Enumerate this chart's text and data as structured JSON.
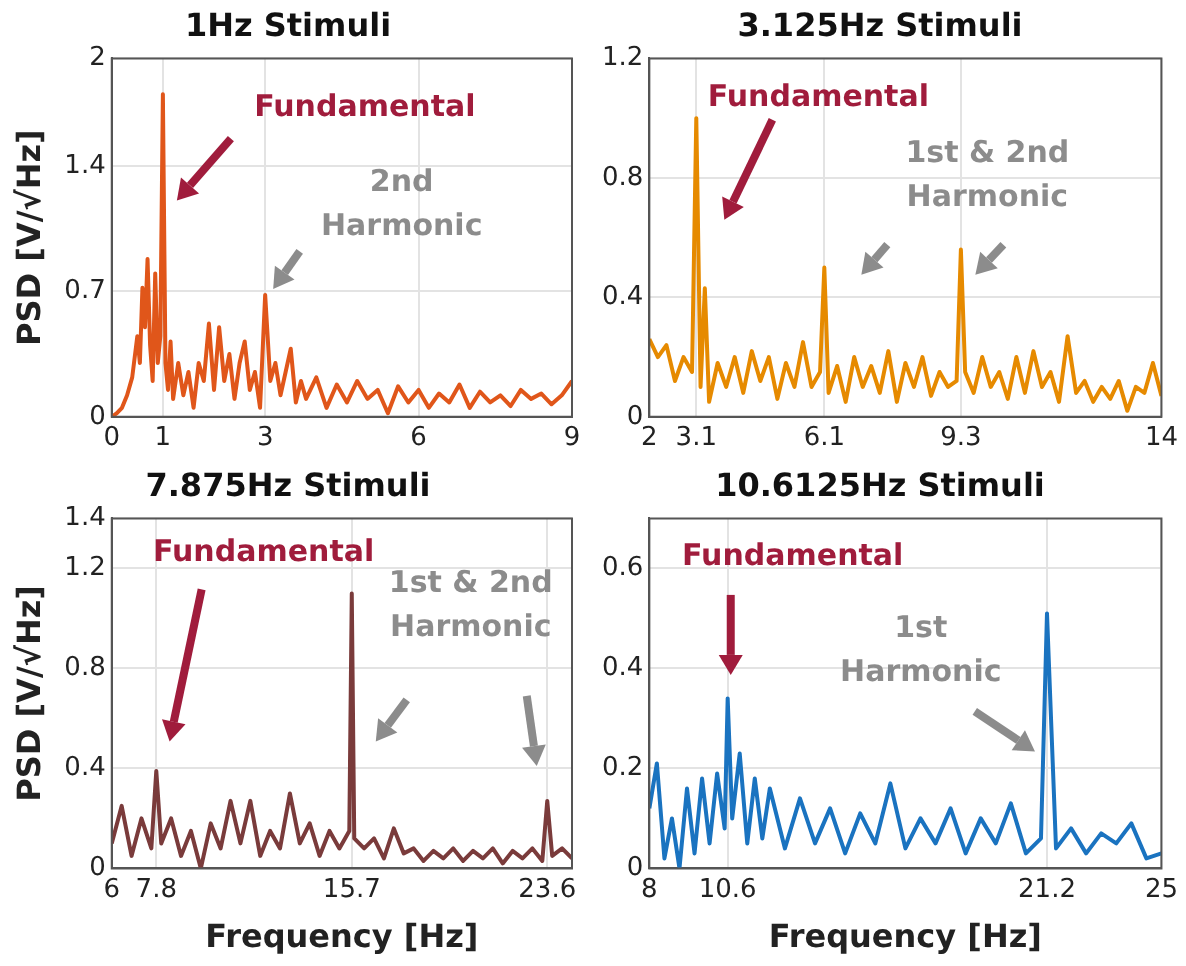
{
  "chart_data": [
    {
      "type": "line",
      "title": "1Hz Stimuli",
      "ylabel": "PSD [V/√Hz]",
      "xlim": [
        0,
        9
      ],
      "ylim": [
        0,
        2
      ],
      "xticks": [
        0,
        1,
        3,
        6,
        9
      ],
      "yticks": [
        0,
        0.7,
        1.4,
        2
      ],
      "grid": true,
      "x": [
        0,
        0.1,
        0.2,
        0.3,
        0.4,
        0.5,
        0.55,
        0.6,
        0.65,
        0.7,
        0.75,
        0.8,
        0.85,
        0.9,
        0.95,
        1.0,
        1.05,
        1.1,
        1.15,
        1.2,
        1.3,
        1.4,
        1.5,
        1.6,
        1.7,
        1.8,
        1.9,
        2.0,
        2.1,
        2.2,
        2.3,
        2.4,
        2.5,
        2.6,
        2.7,
        2.8,
        2.9,
        3.0,
        3.1,
        3.2,
        3.3,
        3.4,
        3.5,
        3.6,
        3.7,
        3.8,
        4.0,
        4.2,
        4.4,
        4.6,
        4.8,
        5.0,
        5.2,
        5.4,
        5.6,
        5.8,
        6.0,
        6.2,
        6.4,
        6.6,
        6.8,
        7.0,
        7.2,
        7.4,
        7.6,
        7.8,
        8.0,
        8.2,
        8.4,
        8.6,
        8.8,
        9.0
      ],
      "series": [
        {
          "color": "#e0561a",
          "values": [
            0,
            0.02,
            0.05,
            0.12,
            0.22,
            0.45,
            0.3,
            0.72,
            0.5,
            0.88,
            0.4,
            0.2,
            0.8,
            0.3,
            0.45,
            1.8,
            0.3,
            0.15,
            0.42,
            0.1,
            0.3,
            0.12,
            0.25,
            0.05,
            0.3,
            0.2,
            0.52,
            0.15,
            0.5,
            0.2,
            0.35,
            0.1,
            0.3,
            0.42,
            0.15,
            0.25,
            0.05,
            0.68,
            0.2,
            0.3,
            0.12,
            0.25,
            0.38,
            0.08,
            0.2,
            0.1,
            0.22,
            0.05,
            0.18,
            0.08,
            0.2,
            0.1,
            0.15,
            0.02,
            0.17,
            0.08,
            0.15,
            0.05,
            0.13,
            0.08,
            0.18,
            0.05,
            0.14,
            0.08,
            0.12,
            0.06,
            0.15,
            0.1,
            0.13,
            0.07,
            0.12,
            0.2
          ]
        }
      ],
      "annotations": [
        "Fundamental",
        {
          "text": "2nd Harmonic",
          "x": 3,
          "y": 0.68
        }
      ]
    },
    {
      "type": "line",
      "title": "3.125Hz Stimuli",
      "xlim": [
        2,
        14
      ],
      "ylim": [
        0,
        1.2
      ],
      "xticks": [
        2,
        3.1,
        6.1,
        9.3,
        14
      ],
      "yticks": [
        0,
        0.4,
        0.8,
        1.2
      ],
      "grid": true,
      "x": [
        2.0,
        2.2,
        2.4,
        2.6,
        2.8,
        3.0,
        3.1,
        3.2,
        3.3,
        3.4,
        3.6,
        3.8,
        4.0,
        4.2,
        4.4,
        4.6,
        4.8,
        5.0,
        5.2,
        5.4,
        5.6,
        5.8,
        6.0,
        6.1,
        6.2,
        6.4,
        6.6,
        6.8,
        7.0,
        7.2,
        7.4,
        7.6,
        7.8,
        8.0,
        8.2,
        8.4,
        8.6,
        8.8,
        9.0,
        9.2,
        9.3,
        9.4,
        9.6,
        9.8,
        10.0,
        10.2,
        10.4,
        10.6,
        10.8,
        11.0,
        11.2,
        11.4,
        11.6,
        11.8,
        12.0,
        12.2,
        12.4,
        12.6,
        12.8,
        13.0,
        13.2,
        13.4,
        13.6,
        13.8,
        14.0
      ],
      "series": [
        {
          "color": "#e68a00",
          "values": [
            0.26,
            0.2,
            0.24,
            0.12,
            0.2,
            0.15,
            1.0,
            0.1,
            0.43,
            0.05,
            0.18,
            0.1,
            0.2,
            0.08,
            0.22,
            0.12,
            0.2,
            0.06,
            0.18,
            0.1,
            0.25,
            0.1,
            0.15,
            0.5,
            0.08,
            0.17,
            0.05,
            0.2,
            0.1,
            0.17,
            0.08,
            0.22,
            0.05,
            0.18,
            0.1,
            0.2,
            0.07,
            0.15,
            0.1,
            0.12,
            0.56,
            0.15,
            0.08,
            0.2,
            0.1,
            0.15,
            0.06,
            0.2,
            0.08,
            0.22,
            0.1,
            0.15,
            0.05,
            0.27,
            0.08,
            0.12,
            0.05,
            0.1,
            0.06,
            0.12,
            0.02,
            0.1,
            0.08,
            0.18,
            0.07
          ]
        }
      ],
      "annotations": [
        "Fundamental",
        "1st & 2nd Harmonic"
      ]
    },
    {
      "type": "line",
      "title": "7.875Hz Stimuli",
      "xlabel": "Frequency [Hz]",
      "ylabel": "PSD [V/√Hz]",
      "xlim": [
        6,
        24.6
      ],
      "ylim": [
        0,
        1.4
      ],
      "xticks": [
        6,
        7.8,
        15.7,
        23.6
      ],
      "yticks": [
        0,
        0.4,
        0.8,
        1.2,
        1.4
      ],
      "grid": true,
      "x": [
        6.0,
        6.4,
        6.8,
        7.2,
        7.6,
        7.8,
        8.0,
        8.4,
        8.8,
        9.2,
        9.6,
        10.0,
        10.4,
        10.8,
        11.2,
        11.6,
        12.0,
        12.4,
        12.8,
        13.2,
        13.6,
        14.0,
        14.4,
        14.8,
        15.2,
        15.6,
        15.7,
        15.8,
        16.2,
        16.6,
        17.0,
        17.4,
        17.8,
        18.2,
        18.6,
        19.0,
        19.4,
        19.8,
        20.2,
        20.6,
        21.0,
        21.4,
        21.8,
        22.2,
        22.6,
        23.0,
        23.4,
        23.6,
        23.8,
        24.2,
        24.6
      ],
      "series": [
        {
          "color": "#7a3b3b",
          "values": [
            0.1,
            0.25,
            0.05,
            0.2,
            0.08,
            0.39,
            0.1,
            0.2,
            0.05,
            0.15,
            0.0,
            0.18,
            0.08,
            0.27,
            0.1,
            0.27,
            0.05,
            0.15,
            0.08,
            0.3,
            0.1,
            0.18,
            0.05,
            0.15,
            0.08,
            0.15,
            1.1,
            0.12,
            0.08,
            0.12,
            0.04,
            0.16,
            0.06,
            0.08,
            0.03,
            0.07,
            0.04,
            0.08,
            0.03,
            0.07,
            0.04,
            0.08,
            0.02,
            0.07,
            0.04,
            0.08,
            0.03,
            0.27,
            0.05,
            0.08,
            0.04
          ]
        }
      ],
      "annotations": [
        "Fundamental",
        {
          "text": "1st & 2nd Harmonic",
          "x": 15.7,
          "y": 1.1
        }
      ]
    },
    {
      "type": "line",
      "title": "10.6125Hz Stimuli",
      "xlabel": "Frequency [Hz]",
      "xlim": [
        8,
        25
      ],
      "ylim": [
        0,
        0.7
      ],
      "xticks": [
        8,
        10.6,
        21.2,
        25
      ],
      "yticks": [
        0,
        0.2,
        0.4,
        0.6
      ],
      "grid": true,
      "x": [
        8.0,
        8.25,
        8.5,
        8.75,
        9.0,
        9.25,
        9.5,
        9.75,
        10.0,
        10.25,
        10.5,
        10.6,
        10.75,
        11.0,
        11.25,
        11.5,
        11.75,
        12.0,
        12.5,
        13.0,
        13.5,
        14.0,
        14.5,
        15.0,
        15.5,
        16.0,
        16.5,
        17.0,
        17.5,
        18.0,
        18.5,
        19.0,
        19.5,
        20.0,
        20.5,
        21.0,
        21.2,
        21.5,
        22.0,
        22.5,
        23.0,
        23.5,
        24.0,
        24.5,
        25.0
      ],
      "series": [
        {
          "color": "#1a73c0",
          "values": [
            0.12,
            0.21,
            0.02,
            0.1,
            0.0,
            0.16,
            0.03,
            0.18,
            0.05,
            0.19,
            0.08,
            0.34,
            0.1,
            0.23,
            0.05,
            0.18,
            0.06,
            0.16,
            0.04,
            0.14,
            0.05,
            0.12,
            0.03,
            0.11,
            0.05,
            0.17,
            0.04,
            0.1,
            0.05,
            0.12,
            0.03,
            0.1,
            0.05,
            0.13,
            0.03,
            0.06,
            0.51,
            0.04,
            0.08,
            0.03,
            0.07,
            0.05,
            0.09,
            0.02,
            0.03
          ]
        }
      ],
      "annotations": [
        "Fundamental",
        {
          "text": "1st Harmonic",
          "x": 21.2,
          "y": 0.51
        }
      ]
    }
  ]
}
